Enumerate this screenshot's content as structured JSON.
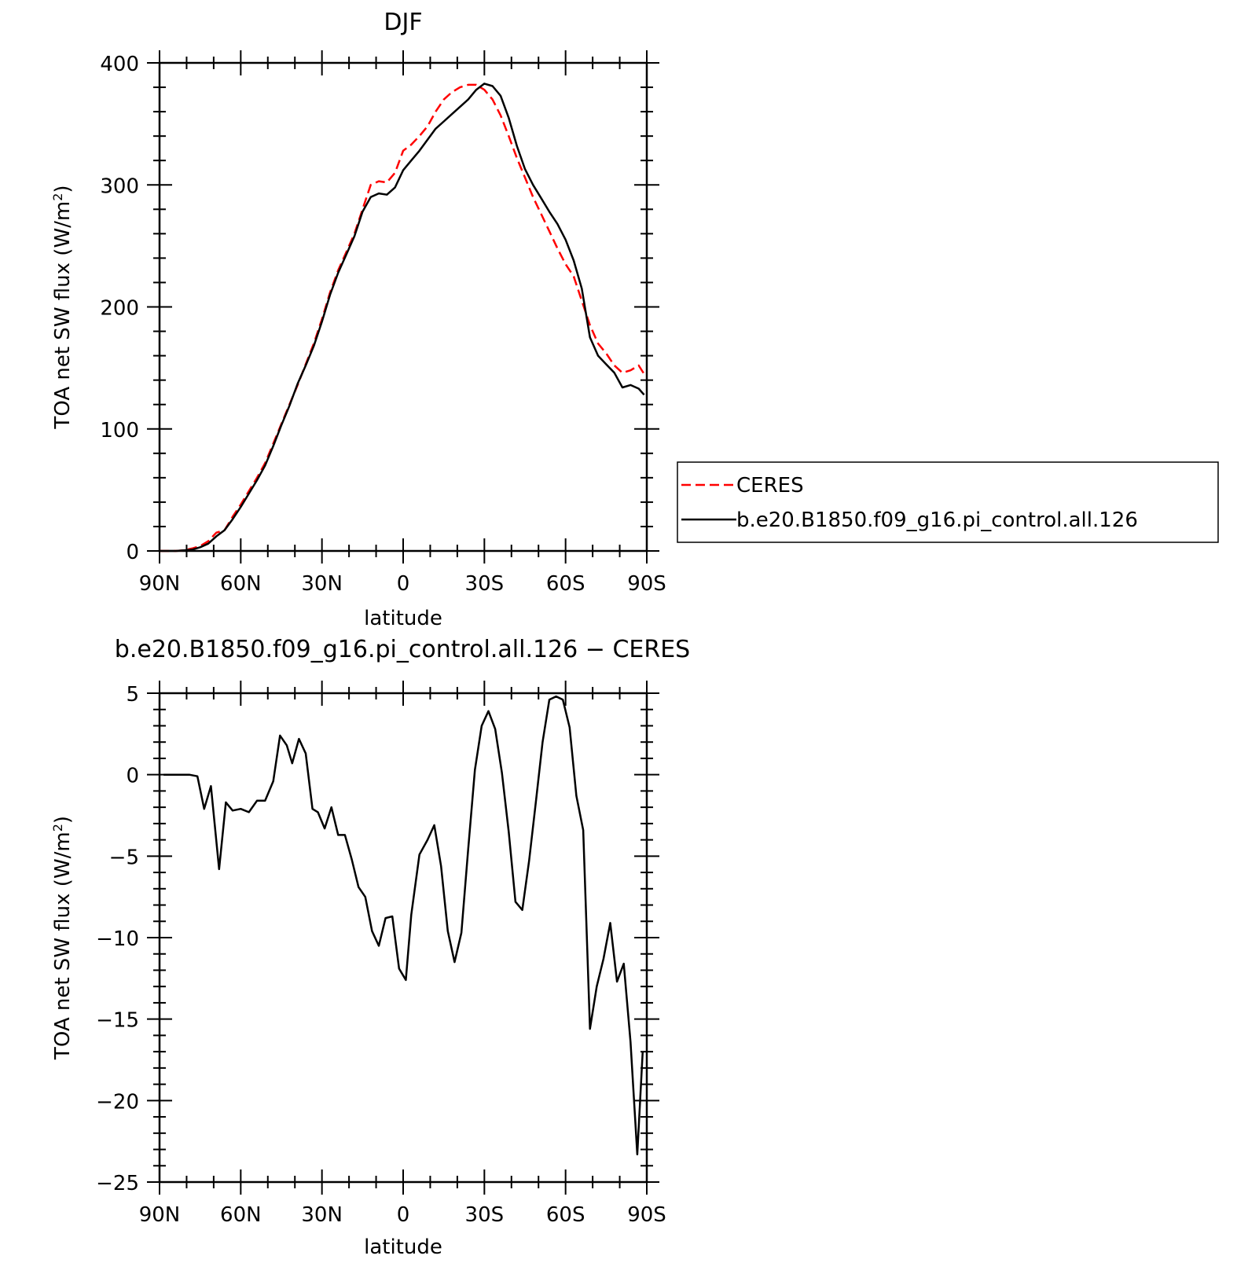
{
  "colors": {
    "ceres": "#ff0000",
    "model": "#000000"
  },
  "chart_data": [
    {
      "type": "line",
      "title": "DJF",
      "xlabel": "latitude",
      "ylabel_main": "TOA net SW flux (W/m",
      "ylabel_sup": "2",
      "ylabel_close": ")",
      "xlim": [
        90,
        -90
      ],
      "ylim": [
        0,
        400
      ],
      "xticks": [
        {
          "value": 90,
          "label": "90N"
        },
        {
          "value": 60,
          "label": "60N"
        },
        {
          "value": 30,
          "label": "30N"
        },
        {
          "value": 0,
          "label": "0"
        },
        {
          "value": -30,
          "label": "30S"
        },
        {
          "value": -60,
          "label": "60S"
        },
        {
          "value": -90,
          "label": "90S"
        }
      ],
      "yticks": [
        0,
        100,
        200,
        300,
        400
      ],
      "legend": {
        "placement": "right-middle",
        "entries": [
          "CERES",
          "b.e20.B1850.f09_g16.pi_control.all.126"
        ]
      },
      "series": [
        {
          "name": "CERES",
          "style": "dashed",
          "color": "#ff0000",
          "x": [
            90,
            87,
            84,
            81,
            78,
            75,
            72,
            69,
            66,
            63,
            60,
            57,
            54,
            51,
            48,
            45,
            42,
            39,
            36,
            33,
            30,
            27,
            24,
            21,
            18,
            15,
            12,
            9,
            6,
            3,
            0,
            -3,
            -6,
            -9,
            -12,
            -15,
            -18,
            -21,
            -24,
            -27,
            -30,
            -33,
            -36,
            -39,
            -42,
            -45,
            -48,
            -51,
            -54,
            -57,
            -60,
            -63,
            -66,
            -69,
            -72,
            -75,
            -78,
            -81,
            -84,
            -87,
            -89
          ],
          "y": [
            0,
            0,
            0,
            0.5,
            2,
            4,
            8,
            15,
            17,
            28,
            38,
            49,
            60,
            72,
            88,
            104,
            120,
            136,
            153,
            170,
            190,
            212,
            230,
            245,
            260,
            280,
            300,
            303,
            302,
            310,
            328,
            333,
            340,
            348,
            360,
            370,
            376,
            380,
            382,
            382,
            378,
            370,
            357,
            340,
            322,
            306,
            290,
            276,
            262,
            248,
            235,
            225,
            205,
            185,
            170,
            162,
            152,
            146,
            148,
            152,
            145
          ]
        },
        {
          "name": "b.e20.B1850.f09_g16.pi_control.all.126",
          "style": "solid",
          "color": "#000000",
          "x": [
            90,
            87,
            84,
            81,
            78,
            75,
            72,
            69,
            66,
            63,
            60,
            57,
            54,
            51,
            48,
            45,
            42,
            39,
            36,
            33,
            30,
            27,
            24,
            21,
            18,
            15,
            12,
            9,
            6,
            3,
            0,
            -3,
            -6,
            -9,
            -12,
            -15,
            -18,
            -21,
            -24,
            -27,
            -30,
            -33,
            -36,
            -39,
            -42,
            -45,
            -48,
            -51,
            -54,
            -57,
            -60,
            -63,
            -66,
            -69,
            -72,
            -75,
            -78,
            -81,
            -84,
            -87,
            -89
          ],
          "y": [
            0,
            0,
            0,
            0.5,
            1,
            3,
            6,
            12,
            17,
            26,
            36,
            47,
            58,
            70,
            86,
            103,
            119,
            137,
            152,
            168,
            188,
            210,
            228,
            243,
            258,
            278,
            290,
            293,
            292,
            298,
            312,
            320,
            328,
            337,
            346,
            352,
            358,
            364,
            370,
            378,
            383,
            381,
            373,
            355,
            332,
            313,
            300,
            289,
            278,
            268,
            255,
            238,
            215,
            175,
            160,
            153,
            146,
            134,
            136,
            133,
            128
          ]
        }
      ]
    },
    {
      "type": "line",
      "title": "b.e20.B1850.f09_g16.pi_control.all.126 − CERES",
      "xlabel": "latitude",
      "ylabel_main": "TOA net SW flux (W/m",
      "ylabel_sup": "2",
      "ylabel_close": ")",
      "xlim": [
        90,
        -90
      ],
      "ylim": [
        -25,
        5
      ],
      "xticks": [
        {
          "value": 90,
          "label": "90N"
        },
        {
          "value": 60,
          "label": "60N"
        },
        {
          "value": 30,
          "label": "30N"
        },
        {
          "value": 0,
          "label": "0"
        },
        {
          "value": -30,
          "label": "30S"
        },
        {
          "value": -60,
          "label": "60S"
        },
        {
          "value": -90,
          "label": "90S"
        }
      ],
      "yticks": [
        {
          "value": 5,
          "label": "5"
        },
        {
          "value": 0,
          "label": "0"
        },
        {
          "value": -5,
          "label": "−5"
        },
        {
          "value": -10,
          "label": "−10"
        },
        {
          "value": -15,
          "label": "−15"
        },
        {
          "value": -20,
          "label": "−20"
        },
        {
          "value": -25,
          "label": "−25"
        }
      ],
      "series": [
        {
          "style": "solid",
          "color": "#000000",
          "x": [
            88.5,
            85,
            82,
            79,
            76,
            73.5,
            71,
            68,
            65.5,
            63,
            60,
            57,
            54,
            51,
            48,
            45.5,
            43,
            41,
            38.5,
            36,
            33.5,
            31.5,
            29,
            26.5,
            24,
            21.5,
            19,
            16.5,
            14,
            11.5,
            9,
            6.5,
            4,
            1.5,
            -1,
            -3,
            -6,
            -9,
            -11.5,
            -14,
            -16.5,
            -19,
            -21.5,
            -24,
            -26.5,
            -29,
            -31.5,
            -34,
            -36.5,
            -39,
            -41.5,
            -44,
            -46.5,
            -49,
            -51.5,
            -54,
            -56.5,
            -59,
            -61.5,
            -64,
            -66.5,
            -69,
            -71.5,
            -74,
            -76.5,
            -79,
            -81.5,
            -84,
            -86.5,
            -88.5
          ],
          "y": [
            0,
            0,
            0,
            0,
            -0.1,
            -2.1,
            -0.7,
            -5.8,
            -1.7,
            -2.2,
            -2.1,
            -2.3,
            -1.6,
            -1.6,
            -0.4,
            2.4,
            1.8,
            0.7,
            2.2,
            1.3,
            -2.1,
            -2.3,
            -3.3,
            -2.0,
            -3.7,
            -3.7,
            -5.2,
            -6.9,
            -7.5,
            -9.6,
            -10.5,
            -8.8,
            -8.7,
            -11.9,
            -12.6,
            -8.6,
            -4.9,
            -4.0,
            -3.1,
            -5.6,
            -9.6,
            -11.5,
            -9.7,
            -4.6,
            0.3,
            3.0,
            3.9,
            2.8,
            0.1,
            -3.5,
            -7.8,
            -8.3,
            -5.3,
            -1.7,
            2.0,
            4.6,
            4.8,
            4.6,
            2.9,
            -1.3,
            -3.4,
            -15.6,
            -13.0,
            -11.3,
            -9.1,
            -12.7,
            -11.6,
            -16.4,
            -23.3,
            -17.0
          ]
        }
      ]
    }
  ]
}
